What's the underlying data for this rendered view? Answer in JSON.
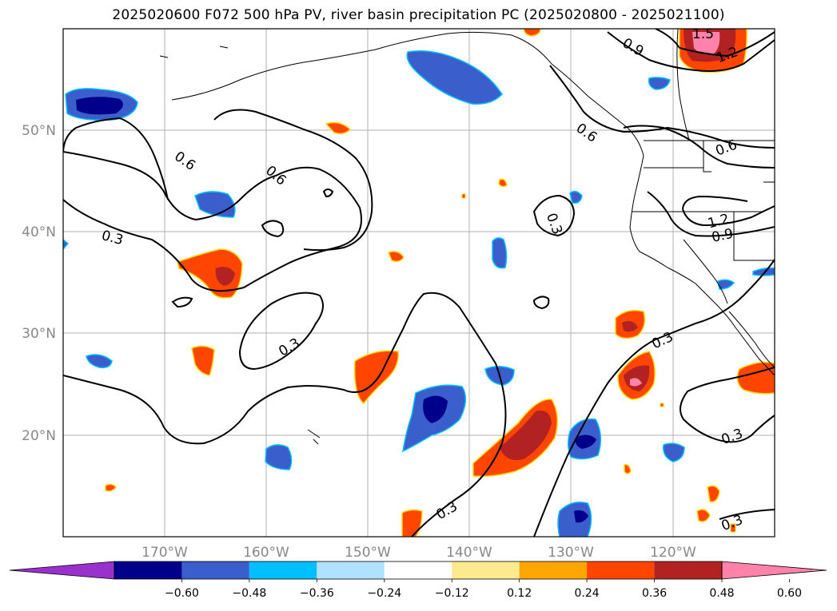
{
  "title": "2025020600 F072 500 hPa PV, river basin precipitation PC (2025020800 - 2025021100)",
  "map": {
    "lon_range": [
      -180,
      -110
    ],
    "lat_range": [
      10,
      60
    ],
    "lat_labels": [
      "50°N",
      "40°N",
      "30°N",
      "20°N"
    ],
    "lon_labels": [
      "170°W",
      "160°W",
      "150°W",
      "140°W",
      "130°W",
      "120°W"
    ],
    "grid": true
  },
  "contour_labels": [
    "0.6",
    "0.6",
    "0.3",
    "0.3",
    "0.3",
    "0.3",
    "0.6",
    "0.6",
    "0.9",
    "1.2",
    "1.5",
    "1.2",
    "0.9",
    "0.3",
    "0.3",
    "0.3"
  ],
  "colorbar": {
    "ticks": [
      "−0.60",
      "−0.48",
      "−0.36",
      "−0.24",
      "−0.12",
      "0.12",
      "0.24",
      "0.36",
      "0.48",
      "0.60"
    ],
    "colors": [
      "#9932cc",
      "#00008b",
      "#3a5fcd",
      "#00bfff",
      "#b0e2ff",
      "#ffffff",
      "#fdea8e",
      "#ffa500",
      "#ff4500",
      "#b22222",
      "#ff82ab"
    ],
    "extend": "both"
  }
}
